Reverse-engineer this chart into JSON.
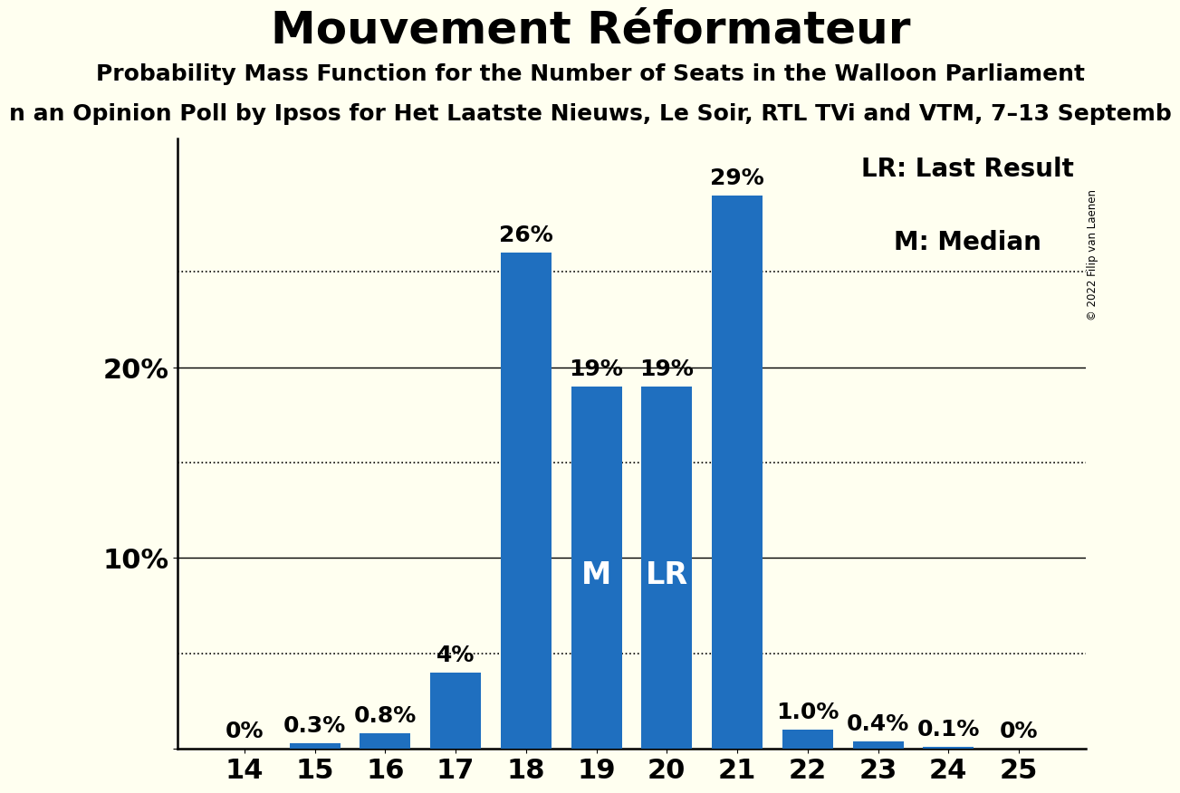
{
  "title": "Mouvement Réformateur",
  "subtitle": "Probability Mass Function for the Number of Seats in the Walloon Parliament",
  "subsubtitle": "n an Opinion Poll by Ipsos for Het Laatste Nieuws, Le Soir, RTL TVi and VTM, 7–13 Septemb",
  "copyright": "© 2022 Filip van Laenen",
  "categories": [
    14,
    15,
    16,
    17,
    18,
    19,
    20,
    21,
    22,
    23,
    24,
    25
  ],
  "values": [
    0.0,
    0.3,
    0.8,
    4.0,
    26.0,
    19.0,
    19.0,
    29.0,
    1.0,
    0.4,
    0.1,
    0.0
  ],
  "bar_labels": [
    "0%",
    "0.3%",
    "0.8%",
    "4%",
    "26%",
    "19%",
    "19%",
    "29%",
    "1.0%",
    "0.4%",
    "0.1%",
    "0%"
  ],
  "bar_color": "#1F6FBF",
  "background_color": "#FFFFF0",
  "median_bar": 19,
  "lr_bar": 20,
  "legend_lr": "LR: Last Result",
  "legend_m": "M: Median",
  "ylim": [
    0,
    32
  ],
  "yticks": [
    0,
    10,
    20
  ],
  "ytick_labels": [
    "",
    "10%",
    "20%"
  ],
  "dotted_lines": [
    5,
    15,
    25
  ],
  "title_fontsize": 36,
  "subtitle_fontsize": 18,
  "subsubtitle_fontsize": 18,
  "axis_tick_fontsize": 22,
  "bar_label_fontsize": 18,
  "inside_label_fontsize": 24,
  "legend_fontsize": 20
}
